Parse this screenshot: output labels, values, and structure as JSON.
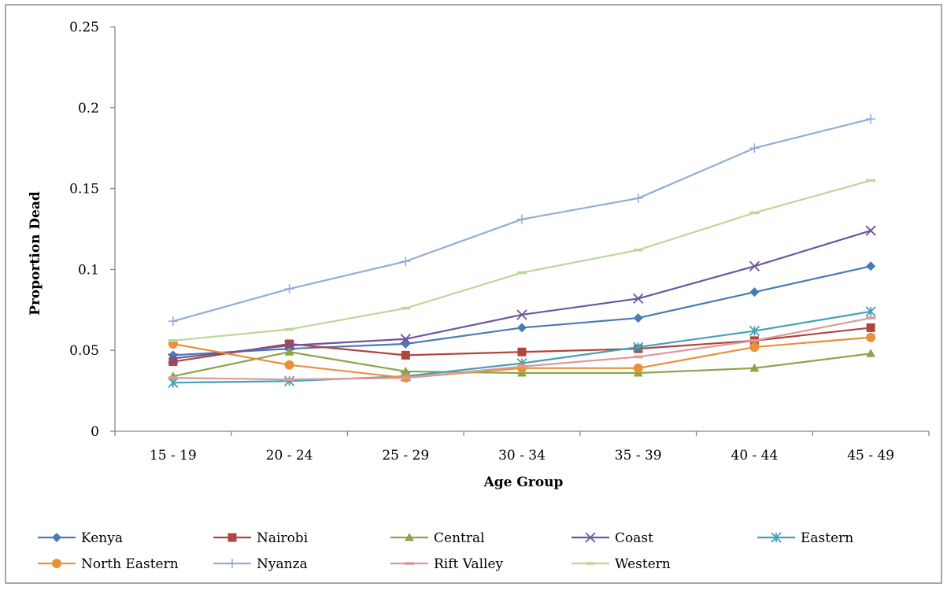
{
  "chart_data": {
    "type": "line",
    "xlabel": "Age Group",
    "ylabel": "Proportion Dead",
    "ylim": [
      0,
      0.25
    ],
    "yticks": [
      "0",
      "0.05",
      "0.1",
      "0.15",
      "0.2",
      "0.25"
    ],
    "categories": [
      "15 - 19",
      "20 - 24",
      "25 - 29",
      "30 - 34",
      "35 - 39",
      "40 - 44",
      "45 - 49"
    ],
    "grid": false,
    "legend_position": "bottom",
    "series": [
      {
        "name": "Kenya",
        "color": "#4a7ab4",
        "marker": "diamond",
        "values": [
          0.047,
          0.051,
          0.054,
          0.064,
          0.07,
          0.086,
          0.102
        ]
      },
      {
        "name": "Nairobi",
        "color": "#b04540",
        "marker": "square",
        "values": [
          0.043,
          0.054,
          0.047,
          0.049,
          0.051,
          0.056,
          0.064
        ]
      },
      {
        "name": "Central",
        "color": "#8aa54a",
        "marker": "triangle",
        "values": [
          0.034,
          0.049,
          0.037,
          0.036,
          0.036,
          0.039,
          0.048
        ]
      },
      {
        "name": "Coast",
        "color": "#6e54a0",
        "marker": "x",
        "values": [
          0.045,
          0.053,
          0.057,
          0.072,
          0.082,
          0.102,
          0.124
        ]
      },
      {
        "name": "Eastern",
        "color": "#45a0b8",
        "marker": "star",
        "values": [
          0.03,
          0.031,
          0.034,
          0.042,
          0.052,
          0.062,
          0.074
        ]
      },
      {
        "name": "North Eastern",
        "color": "#e8903a",
        "marker": "circle",
        "values": [
          0.054,
          0.041,
          0.033,
          0.039,
          0.039,
          0.052,
          0.058
        ]
      },
      {
        "name": "Nyanza",
        "color": "#93acd8",
        "marker": "plus",
        "values": [
          0.068,
          0.088,
          0.105,
          0.131,
          0.144,
          0.175,
          0.193
        ]
      },
      {
        "name": "Rift Valley",
        "color": "#dc9a98",
        "marker": "dash",
        "values": [
          0.033,
          0.032,
          0.033,
          0.04,
          0.046,
          0.056,
          0.07
        ]
      },
      {
        "name": "Western",
        "color": "#bcd89a",
        "marker": "dash",
        "values": [
          0.056,
          0.063,
          0.076,
          0.098,
          0.112,
          0.135,
          0.155
        ]
      }
    ]
  }
}
